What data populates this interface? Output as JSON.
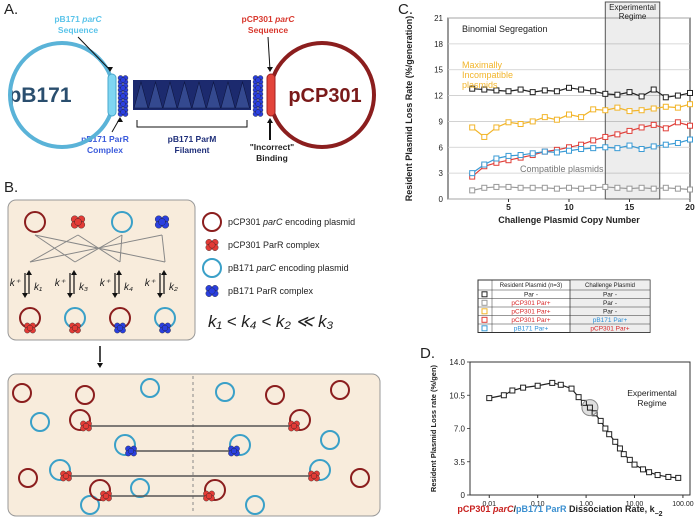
{
  "diagram": {
    "a": {
      "label": "A.",
      "left_plasmid": "pB171",
      "right_plasmid": "pCP301",
      "left_site": [
        "pB171",
        "parC",
        "Sequence"
      ],
      "left_complex": [
        "pB171 ParR",
        "Complex"
      ],
      "filament": [
        "pB171 ParM",
        "Filament"
      ],
      "right_site": [
        "pCP301",
        "parC",
        "Sequence"
      ],
      "binding": [
        "\"Incorrect\"",
        "Binding"
      ]
    },
    "b": {
      "label": "B.",
      "legend": [
        [
          "pCP301",
          "parC",
          "encoding plasmid"
        ],
        [
          "pCP301 ParR complex"
        ],
        [
          "pB171",
          "parC",
          "encoding plasmid"
        ],
        [
          "pB171 ParR complex"
        ]
      ],
      "rates": [
        [
          "k⁺",
          "k₁"
        ],
        [
          "k⁺",
          "k₃"
        ],
        [
          "k⁺",
          "k₄"
        ],
        [
          "k⁺",
          "k₂"
        ]
      ],
      "ordering": "k₁ < k₄ < k₂ ≪ k₃"
    }
  },
  "chart_data": [
    {
      "type": "line",
      "panel": "C.",
      "y_label": "Resident Plasmid Loss Rate (%/generation)",
      "x_label": "Challenge Plasmid Copy Number",
      "x": [
        2,
        3,
        4,
        5,
        6,
        7,
        8,
        9,
        10,
        11,
        12,
        13,
        14,
        15,
        16,
        17,
        18,
        19,
        20
      ],
      "series": [
        {
          "color": "#222222",
          "values": [
            12.8,
            12.7,
            12.6,
            12.5,
            12.7,
            12.4,
            12.6,
            12.5,
            12.9,
            12.7,
            12.5,
            12.2,
            12.1,
            12.4,
            11.9,
            12.7,
            11.8,
            12.0,
            12.3
          ]
        },
        {
          "color": "#999999",
          "values": [
            1.0,
            1.3,
            1.4,
            1.4,
            1.3,
            1.3,
            1.3,
            1.2,
            1.3,
            1.2,
            1.3,
            1.4,
            1.3,
            1.2,
            1.3,
            1.2,
            1.3,
            1.2,
            1.1
          ]
        },
        {
          "color": "#f2b52a",
          "values": [
            8.3,
            7.2,
            8.3,
            8.9,
            8.7,
            9.0,
            9.5,
            9.2,
            9.8,
            9.5,
            10.4,
            10.3,
            10.6,
            10.2,
            10.3,
            10.5,
            10.7,
            10.6,
            11.0
          ]
        },
        {
          "color": "#e0403a",
          "values": [
            2.6,
            3.8,
            4.2,
            4.5,
            4.8,
            5.1,
            5.5,
            5.7,
            6.0,
            6.3,
            6.8,
            7.2,
            7.5,
            7.9,
            8.3,
            8.6,
            8.2,
            8.9,
            8.5
          ]
        },
        {
          "color": "#3a9bd5",
          "values": [
            3.0,
            4.0,
            4.7,
            5.0,
            5.1,
            5.3,
            5.5,
            5.4,
            5.6,
            5.8,
            5.9,
            6.0,
            5.9,
            6.2,
            5.8,
            6.1,
            6.3,
            6.5,
            6.9
          ]
        }
      ],
      "xlim": [
        0,
        20
      ],
      "xticks": [
        5,
        10,
        15,
        20
      ],
      "ylim": [
        0,
        21
      ],
      "yticks": [
        0,
        3,
        6,
        9,
        12,
        15,
        18,
        21
      ],
      "grid": true,
      "regime": [
        13,
        17.5
      ],
      "regime_label": [
        "Experimental",
        "Regime"
      ],
      "annotations": [
        {
          "lines": [
            "Binomial Segregation"
          ],
          "color": "#222222"
        },
        {
          "lines": [
            "Maximally",
            "Incompatible",
            "plasmids"
          ],
          "color": "#f2b52a"
        },
        {
          "lines": [
            "Compatible plasmids"
          ],
          "color": "#777777"
        }
      ],
      "legend_table": {
        "header": [
          "Resident Plasmid (n=3)",
          "Challenge Plasmid"
        ],
        "rows": [
          [
            "Par -",
            "Par -"
          ],
          [
            "pCP301 Par+",
            "Par -"
          ],
          [
            "pCP301 Par+",
            "Par -"
          ],
          [
            "pCP301 Par+",
            "pB171 Par+"
          ],
          [
            "pB171 Par+",
            "pCP301 Par+"
          ]
        ]
      }
    },
    {
      "type": "line",
      "panel": "D.",
      "y_label": "Resident Plasmid Loss rate (%/gen)",
      "x_label": [
        "pCP301",
        "parC",
        "/",
        "pB171 ParR",
        "Dissociation Rate, k",
        "−2"
      ],
      "x": [
        0.01,
        0.02,
        0.03,
        0.05,
        0.1,
        0.2,
        0.3,
        0.5,
        0.7,
        0.9,
        1.2,
        1.5,
        2,
        2.5,
        3,
        4,
        5,
        6,
        8,
        10,
        15,
        20,
        30,
        50,
        80
      ],
      "series": [
        {
          "color": "#222222",
          "values": [
            10.2,
            10.5,
            11.0,
            11.3,
            11.5,
            11.8,
            11.6,
            11.2,
            10.3,
            9.7,
            9.2,
            8.6,
            7.8,
            7.0,
            6.4,
            5.6,
            4.9,
            4.3,
            3.7,
            3.2,
            2.7,
            2.4,
            2.1,
            1.9,
            1.8
          ]
        }
      ],
      "xscale": "log",
      "xlim": [
        0.004,
        140
      ],
      "xticks": [
        0.01,
        {
          "value": 0.1,
          "label": "0.10"
        },
        {
          "value": 1,
          "label": "1.00"
        },
        {
          "value": 10,
          "label": "10.00"
        },
        {
          "value": 100,
          "label": "100.00"
        }
      ],
      "ylim": [
        0,
        14
      ],
      "yticks": [
        0,
        3.5,
        {
          "value": 7,
          "label": "7.0"
        },
        10.5,
        {
          "value": 14,
          "label": "14.0"
        }
      ],
      "grid": false,
      "regime_point": [
        1.2,
        9.2
      ],
      "regime_label": [
        "Experimental",
        "Regime"
      ]
    }
  ]
}
